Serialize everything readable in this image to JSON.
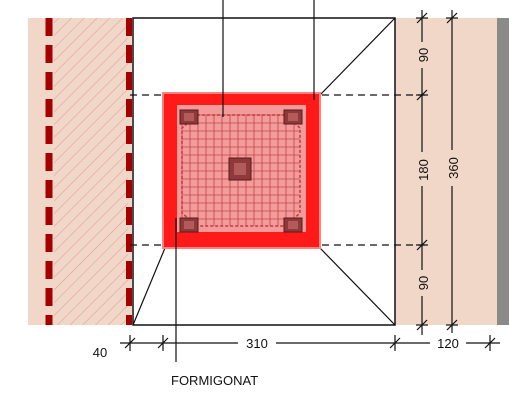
{
  "dimensions": {
    "top_segment": "90",
    "middle_segment": "180",
    "bottom_segment": "90",
    "total_height": "360",
    "left_offset": "40",
    "main_width": "310",
    "right_width": "120"
  },
  "labels": {
    "material": "FORMIGONAT"
  },
  "colors": {
    "wall_fill": "#f0d7c8",
    "hatch": "#e3a0a0",
    "dash_red": "#a50000",
    "slab_red": "#ff1a1a",
    "inner_pink": "#f39a9a",
    "line": "#111111",
    "grey_strip": "#8a8a8a"
  }
}
